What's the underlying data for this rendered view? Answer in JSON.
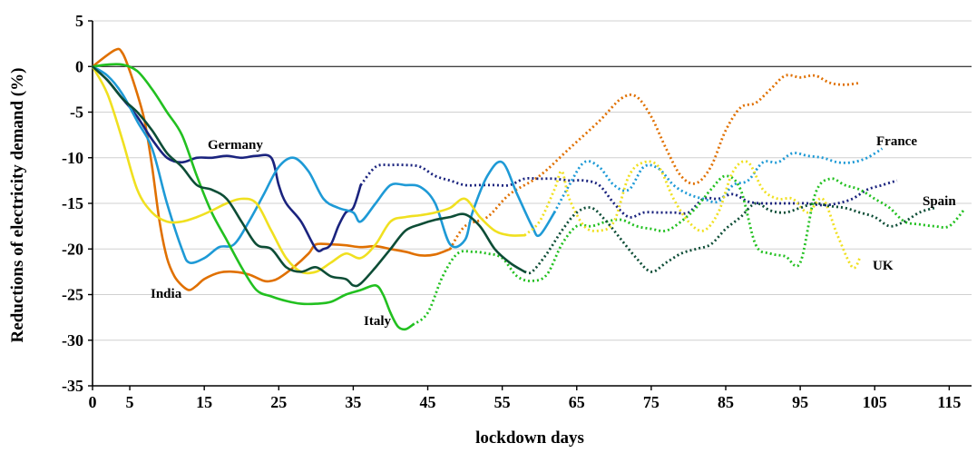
{
  "chart_data": {
    "type": "line",
    "title": "",
    "xlabel": "lockdown days",
    "ylabel": "Reductions of electricity demand (%)",
    "xlim": [
      0,
      118
    ],
    "ylim": [
      -35,
      5
    ],
    "xticks": [
      0,
      5,
      15,
      25,
      35,
      45,
      55,
      65,
      75,
      85,
      95,
      105,
      115
    ],
    "yticks": [
      5,
      0,
      -5,
      -10,
      -15,
      -20,
      -25,
      -30,
      -35
    ],
    "grid": true,
    "annotations": [
      {
        "text": "Germany",
        "series": "Germany"
      },
      {
        "text": "France",
        "series": "France"
      },
      {
        "text": "Spain",
        "series": "Spain"
      },
      {
        "text": "UK",
        "series": "UK"
      },
      {
        "text": "India",
        "series": "India"
      },
      {
        "text": "Italy",
        "series": "Italy"
      }
    ],
    "series": [
      {
        "name": "India",
        "color": "#e07000",
        "dash_from_index": 31,
        "x": [
          0,
          3,
          4,
          5,
          6,
          7,
          8,
          9,
          10,
          11,
          12,
          13,
          14,
          15,
          17,
          19,
          21,
          23,
          24,
          25,
          27,
          29,
          30,
          32,
          34,
          36,
          38,
          40,
          42,
          44,
          46,
          48,
          50,
          53,
          56,
          60,
          64,
          68,
          71,
          73,
          75,
          77,
          79,
          81,
          83,
          85,
          87,
          89,
          91,
          93,
          95,
          97,
          99,
          101,
          103
        ],
        "y": [
          0,
          1.8,
          1.5,
          -0.5,
          -3,
          -6,
          -11,
          -17,
          -21,
          -23,
          -24,
          -24.5,
          -24,
          -23.3,
          -22.6,
          -22.5,
          -22.8,
          -23.5,
          -23.5,
          -23.2,
          -22,
          -20.5,
          -19.5,
          -19.5,
          -19.6,
          -19.8,
          -19.7,
          -20,
          -20.3,
          -20.7,
          -20.6,
          -20,
          -17.5,
          -16.5,
          -14,
          -12,
          -9,
          -6,
          -3.5,
          -3.3,
          -5.5,
          -9,
          -12,
          -12.8,
          -11,
          -7,
          -4.5,
          -4,
          -2.5,
          -1,
          -1.2,
          -1,
          -1.8,
          -2,
          -1.8
        ]
      },
      {
        "name": "Germany",
        "color": "#1a237e",
        "dash_from_index": 22,
        "x": [
          0,
          2,
          4,
          6,
          8,
          10,
          12,
          14,
          16,
          18,
          20,
          22,
          24,
          25,
          26,
          28,
          30,
          31,
          32,
          33,
          34,
          35,
          36,
          38,
          40,
          42,
          44,
          46,
          48,
          50,
          52,
          54,
          56,
          58,
          60,
          62,
          64,
          66,
          68,
          70,
          72,
          74,
          76,
          78,
          80,
          82,
          84,
          86,
          88,
          90,
          92,
          94,
          96,
          98,
          100,
          102,
          104,
          106,
          108
        ],
        "y": [
          0,
          -1.5,
          -3.5,
          -5.5,
          -8,
          -10,
          -10.5,
          -10,
          -10,
          -9.8,
          -10,
          -9.8,
          -10,
          -13,
          -15,
          -17,
          -20,
          -20,
          -19.5,
          -17.5,
          -16,
          -15.5,
          -13,
          -11,
          -10.8,
          -10.8,
          -11,
          -12,
          -12.5,
          -13,
          -13,
          -13,
          -13,
          -12.3,
          -12.3,
          -12.3,
          -12.5,
          -12.5,
          -13,
          -15,
          -16.5,
          -16,
          -16,
          -16,
          -16,
          -14.5,
          -14.5,
          -14,
          -14.8,
          -15,
          -15,
          -15,
          -15,
          -15.2,
          -15,
          -14.5,
          -13.5,
          -13,
          -12.5
        ]
      },
      {
        "name": "France",
        "color": "#1e9ad6",
        "dash_from_index": 33,
        "x": [
          0,
          2,
          4,
          6,
          8,
          10,
          12,
          13,
          15,
          17,
          19,
          21,
          23,
          25,
          27,
          29,
          31,
          33,
          35,
          36,
          38,
          40,
          42,
          44,
          46,
          48,
          50,
          51,
          53,
          55,
          57,
          59,
          60,
          62,
          64,
          66,
          68,
          70,
          72,
          74,
          76,
          78,
          80,
          82,
          84,
          86,
          88,
          90,
          92,
          94,
          96,
          98,
          100,
          102,
          104,
          106
        ],
        "y": [
          0,
          -1,
          -3,
          -6,
          -9,
          -15,
          -20,
          -21.5,
          -21,
          -19.8,
          -19.5,
          -17,
          -14,
          -11,
          -10,
          -11.5,
          -14.5,
          -15.5,
          -16,
          -17,
          -15,
          -13,
          -13,
          -13.2,
          -15,
          -19.5,
          -19,
          -16,
          -12,
          -10.5,
          -14,
          -17.5,
          -18.5,
          -16,
          -13,
          -10.5,
          -11,
          -13,
          -13.5,
          -11,
          -11.2,
          -13,
          -14,
          -14.5,
          -14.8,
          -13,
          -12.5,
          -10.5,
          -10.5,
          -9.5,
          -9.8,
          -10,
          -10.5,
          -10.5,
          -10,
          -9
        ]
      },
      {
        "name": "Italy",
        "color": "#22c020",
        "dash_from_index": 24,
        "x": [
          0,
          2,
          4,
          6,
          8,
          10,
          12,
          14,
          16,
          18,
          20,
          22,
          24,
          26,
          28,
          30,
          32,
          34,
          36,
          38,
          39,
          40,
          41,
          42,
          43,
          45,
          47,
          49,
          51,
          53,
          55,
          57,
          59,
          61,
          63,
          65,
          67,
          69,
          71,
          73,
          75,
          77,
          79,
          81,
          83,
          85,
          87,
          89,
          91,
          93,
          95,
          97,
          99,
          101,
          103,
          105,
          107,
          109,
          111,
          113,
          115,
          117
        ],
        "y": [
          0,
          0.2,
          0.2,
          -0.5,
          -2.5,
          -5,
          -7.5,
          -12,
          -16,
          -19,
          -22,
          -24.5,
          -25.2,
          -25.7,
          -26,
          -26,
          -25.8,
          -25,
          -24.5,
          -24,
          -25,
          -27,
          -28.5,
          -28.8,
          -28.3,
          -27,
          -23,
          -20.5,
          -20.3,
          -20.5,
          -21,
          -23,
          -23.5,
          -22.8,
          -19.5,
          -17.5,
          -17.5,
          -17,
          -16.8,
          -17.5,
          -17.8,
          -18,
          -17,
          -15.5,
          -13.5,
          -12,
          -13.5,
          -19.5,
          -20.5,
          -20.8,
          -21.5,
          -14,
          -12.3,
          -13,
          -13.5,
          -14.5,
          -15.5,
          -17,
          -17.3,
          -17.5,
          -17.5,
          -15.7
        ]
      },
      {
        "name": "UK",
        "color": "#f0e020",
        "dash_from_index": 29,
        "x": [
          0,
          2,
          4,
          6,
          8,
          10,
          12,
          14,
          16,
          18,
          20,
          22,
          24,
          26,
          28,
          30,
          32,
          34,
          36,
          38,
          40,
          42,
          44,
          46,
          48,
          50,
          52,
          54,
          56,
          58,
          60,
          62,
          63,
          64,
          66,
          68,
          70,
          72,
          74,
          76,
          78,
          80,
          82,
          84,
          86,
          88,
          90,
          92,
          94,
          96,
          98,
          100,
          102,
          103
        ],
        "y": [
          0,
          -3,
          -8,
          -13.5,
          -16,
          -17,
          -17,
          -16.5,
          -15.8,
          -15,
          -14.5,
          -15,
          -18,
          -21,
          -22.5,
          -22.5,
          -21.5,
          -20.5,
          -21,
          -19.5,
          -17,
          -16.5,
          -16.3,
          -16,
          -15.5,
          -14.5,
          -16.5,
          -18,
          -18.5,
          -18.5,
          -17,
          -13.5,
          -11.5,
          -14.5,
          -17.5,
          -18,
          -17,
          -12,
          -10.5,
          -11,
          -14.5,
          -17,
          -18,
          -16,
          -11.5,
          -10.5,
          -13.5,
          -14.5,
          -14.5,
          -16,
          -14.5,
          -18.5,
          -22,
          -21
        ]
      },
      {
        "name": "Spain",
        "color": "#0d4d36",
        "dash_from_index": 30,
        "x": [
          0,
          2,
          4,
          6,
          8,
          10,
          12,
          14,
          16,
          18,
          20,
          22,
          24,
          26,
          28,
          30,
          32,
          34,
          35,
          36,
          38,
          40,
          42,
          44,
          46,
          48,
          50,
          52,
          54,
          56,
          58,
          59,
          61,
          63,
          65,
          67,
          69,
          71,
          73,
          75,
          77,
          79,
          81,
          83,
          85,
          87,
          89,
          91,
          93,
          95,
          97,
          99,
          101,
          103,
          105,
          107,
          109,
          111,
          113
        ],
        "y": [
          0,
          -1.5,
          -3.5,
          -5,
          -7,
          -9.5,
          -11,
          -13,
          -13.5,
          -14.5,
          -17,
          -19.5,
          -20,
          -22,
          -22.5,
          -22,
          -23,
          -23.3,
          -24,
          -23.8,
          -22,
          -20,
          -18,
          -17.3,
          -16.8,
          -16.5,
          -16.2,
          -17.5,
          -20,
          -21.5,
          -22.5,
          -22.5,
          -20.5,
          -18,
          -16,
          -15.5,
          -17,
          -19,
          -21,
          -22.5,
          -21.5,
          -20.5,
          -20,
          -19.5,
          -17.8,
          -16.5,
          -15,
          -15.8,
          -16,
          -15.5,
          -15,
          -15.3,
          -15.5,
          -16,
          -16.5,
          -17.5,
          -17,
          -16,
          -15.5
        ]
      }
    ]
  }
}
